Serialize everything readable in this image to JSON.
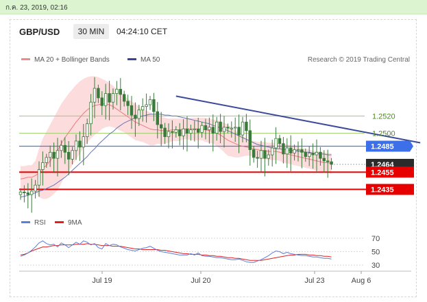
{
  "topbar": {
    "datetime": "ก.ค. 23, 2019, 02:16"
  },
  "header": {
    "pair": "GBP/USD",
    "timeframe": "30 MIN",
    "time": "04:24:10 CET"
  },
  "legend": {
    "ma20": "MA 20 + Bollinger Bands",
    "ma50": "MA 50",
    "credit": "Research © 2019 Trading Central",
    "rsi": "RSI",
    "ma9": "9MA"
  },
  "colors": {
    "ma20": "#f08a8a",
    "ma50": "#37478f",
    "band": "#fbd6d6",
    "candle": "#3a7a3a",
    "support": "#e00000",
    "resistance": "#4b78e6",
    "green_level": "#9ecb6a",
    "rsi": "#5b7fd6",
    "ma9": "#e02020"
  },
  "chart_data": [
    {
      "type": "candlestick",
      "title": "",
      "ylim": [
        1.2418,
        1.2575
      ],
      "x_ticks": [
        "Jul 19",
        "Jul 20",
        "Jul 23",
        "Aug 6"
      ],
      "levels": [
        {
          "value": 1.252,
          "label": "1.2520",
          "style": "green-line"
        },
        {
          "value": 1.25,
          "label": "1.2500",
          "style": "green-line"
        },
        {
          "value": 1.2485,
          "label": "1.2485",
          "style": "blue-line-badge"
        },
        {
          "value": 1.2464,
          "label": "1.2464",
          "style": "current-price-badge"
        },
        {
          "value": 1.2455,
          "label": "1.2455",
          "style": "red-line-badge"
        },
        {
          "value": 1.2435,
          "label": "1.2435",
          "style": "red-line-badge"
        }
      ],
      "close": [
        1.2432,
        1.2431,
        1.2429,
        1.2433,
        1.244,
        1.2458,
        1.2466,
        1.2472,
        1.2478,
        1.2471,
        1.248,
        1.2486,
        1.2478,
        1.247,
        1.248,
        1.2491,
        1.2484,
        1.2496,
        1.2511,
        1.2536,
        1.2552,
        1.2541,
        1.2532,
        1.2546,
        1.2536,
        1.2546,
        1.2551,
        1.2545,
        1.2537,
        1.2532,
        1.2521,
        1.2517,
        1.2527,
        1.2531,
        1.2533,
        1.2539,
        1.2525,
        1.251,
        1.2506,
        1.2496,
        1.2502,
        1.2501,
        1.2504,
        1.2497,
        1.2505,
        1.25,
        1.2504,
        1.2505,
        1.2501,
        1.2509,
        1.2504,
        1.2507,
        1.25,
        1.2513,
        1.2502,
        1.2507,
        1.2506,
        1.2506,
        1.2507,
        1.2498,
        1.2513,
        1.2503,
        1.2481,
        1.2472,
        1.2471,
        1.248,
        1.2471,
        1.2475,
        1.2483,
        1.2494,
        1.2488,
        1.2476,
        1.2483,
        1.2477,
        1.2481,
        1.2481,
        1.2478,
        1.2473,
        1.2477,
        1.2475,
        1.2478,
        1.2471,
        1.2468,
        1.2467,
        1.2464
      ],
      "ma20": [
        1.2447,
        1.2448,
        1.2449,
        1.2449,
        1.2451,
        1.2454,
        1.2459,
        1.2463,
        1.2468,
        1.2474,
        1.248,
        1.2488,
        1.2495,
        1.2501,
        1.2507,
        1.2513,
        1.2518,
        1.2523,
        1.2527,
        1.253,
        1.2532,
        1.2533,
        1.2534,
        1.2534,
        1.2533,
        1.2531,
        1.2528,
        1.2525,
        1.2522,
        1.2519,
        1.2516,
        1.2513,
        1.2511,
        1.2509,
        1.2507,
        1.2505,
        1.2504,
        1.2504,
        1.2503,
        1.2503,
        1.2503,
        1.2504,
        1.2504,
        1.2504,
        1.2505,
        1.2505,
        1.2505,
        1.2505,
        1.2505,
        1.2505,
        1.2504,
        1.2503,
        1.2502,
        1.25,
        1.2498,
        1.2495,
        1.2492,
        1.249,
        1.2488,
        1.2486,
        1.2485,
        1.2484,
        1.2483,
        1.2482,
        1.2481,
        1.248,
        1.248,
        1.2479,
        1.2479,
        1.2479,
        1.2478,
        1.2477,
        1.2476,
        1.2475,
        1.2474,
        1.2473,
        1.2472,
        1.2471,
        1.247,
        1.2469,
        1.2468,
        1.2467,
        1.2466,
        1.2466,
        1.2465
      ],
      "ma50": [
        1.2426,
        1.2427,
        1.2428,
        1.243,
        1.2431,
        1.2433,
        1.2434,
        1.2436,
        1.2438,
        1.244,
        1.2443,
        1.2446,
        1.2449,
        1.2453,
        1.2457,
        1.2461,
        1.2465,
        1.2469,
        1.2473,
        1.2478,
        1.2482,
        1.2487,
        1.2491,
        1.2495,
        1.2499,
        1.2502,
        1.2506,
        1.2509,
        1.2512,
        1.2514,
        1.2516,
        1.2518,
        1.2519,
        1.252,
        1.2521,
        1.2522,
        1.2522,
        1.2522,
        1.2522,
        1.2521,
        1.2521,
        1.252,
        1.252,
        1.2519,
        1.2518,
        1.2517,
        1.2516,
        1.2515,
        1.2514,
        1.2513,
        1.2512,
        1.2511,
        1.2509,
        1.2508,
        1.2506,
        1.2505,
        1.2503,
        1.2501,
        1.2499,
        1.2497,
        1.2495,
        1.2493,
        1.2491,
        1.2489,
        1.2487,
        1.2486,
        1.2485,
        1.2484,
        1.2483,
        1.2482,
        1.2482,
        1.2481,
        1.2481,
        1.248,
        1.248,
        1.2479,
        1.2479,
        1.2478,
        1.2478,
        1.2477,
        1.2477,
        1.2476,
        1.2476,
        1.2475,
        1.2475
      ],
      "band_upper": [
        1.2462,
        1.2462,
        1.2463,
        1.2463,
        1.2468,
        1.2482,
        1.2494,
        1.2502,
        1.251,
        1.2518,
        1.2526,
        1.2534,
        1.254,
        1.2546,
        1.2551,
        1.2556,
        1.256,
        1.2563,
        1.2565,
        1.2566,
        1.2566,
        1.2565,
        1.2563,
        1.2561,
        1.2558,
        1.2555,
        1.2551,
        1.2547,
        1.2543,
        1.254,
        1.2537,
        1.2534,
        1.2531,
        1.2528,
        1.2526,
        1.2524,
        1.2522,
        1.252,
        1.2519,
        1.2518,
        1.2517,
        1.2517,
        1.2517,
        1.2517,
        1.2517,
        1.2517,
        1.2518,
        1.2518,
        1.2518,
        1.2518,
        1.2518,
        1.2517,
        1.2516,
        1.2515,
        1.2514,
        1.2512,
        1.251,
        1.2507,
        1.2504,
        1.25,
        1.2497,
        1.2494,
        1.2492,
        1.2491,
        1.249,
        1.249,
        1.249,
        1.2489,
        1.2489,
        1.2489,
        1.2488,
        1.2488,
        1.2487,
        1.2486,
        1.2485,
        1.2484,
        1.2483,
        1.2482,
        1.2481,
        1.248,
        1.2479,
        1.2479,
        1.2478,
        1.2477,
        1.2477
      ],
      "band_lower": [
        1.2432,
        1.2434,
        1.2435,
        1.2435,
        1.2434,
        1.2426,
        1.2424,
        1.2424,
        1.2426,
        1.243,
        1.2434,
        1.2442,
        1.245,
        1.2456,
        1.2463,
        1.247,
        1.2476,
        1.2483,
        1.2489,
        1.2494,
        1.2498,
        1.2501,
        1.2505,
        1.2507,
        1.2508,
        1.2507,
        1.2505,
        1.2503,
        1.2501,
        1.2498,
        1.2495,
        1.2492,
        1.2491,
        1.249,
        1.2488,
        1.2486,
        1.2486,
        1.2488,
        1.2487,
        1.2488,
        1.2489,
        1.2491,
        1.2491,
        1.2491,
        1.2493,
        1.2493,
        1.2492,
        1.2492,
        1.2492,
        1.2492,
        1.249,
        1.2489,
        1.2488,
        1.2485,
        1.2482,
        1.2478,
        1.2474,
        1.2473,
        1.2472,
        1.2472,
        1.2473,
        1.2474,
        1.2474,
        1.2473,
        1.2472,
        1.247,
        1.247,
        1.2469,
        1.2469,
        1.2469,
        1.2468,
        1.2466,
        1.2465,
        1.2464,
        1.2463,
        1.2462,
        1.2461,
        1.246,
        1.2459,
        1.2458,
        1.2457,
        1.2455,
        1.2454,
        1.2455,
        1.2453
      ],
      "trendline": [
        [
          42,
          1.2543
        ],
        [
          108,
          1.2489
        ]
      ],
      "forecast_arrow": [
        [
          110,
          1.2464
        ],
        [
          118,
          1.2442
        ]
      ]
    },
    {
      "type": "line",
      "title": "",
      "ylim": [
        25,
        80
      ],
      "y_ticks": [
        70,
        50,
        30
      ],
      "rsi": [
        43,
        45,
        48,
        52,
        57,
        63,
        66,
        62,
        60,
        61,
        57,
        63,
        60,
        56,
        60,
        64,
        61,
        66,
        64,
        60,
        62,
        56,
        54,
        62,
        59,
        61,
        60,
        57,
        55,
        53,
        52,
        51,
        53,
        55,
        56,
        58,
        55,
        52,
        50,
        49,
        48,
        47,
        46,
        45,
        45,
        45,
        47,
        45,
        48,
        44,
        43,
        43,
        42,
        41,
        41,
        40,
        39,
        38,
        38,
        39,
        37,
        35,
        34,
        34,
        36,
        38,
        41,
        44,
        48,
        51,
        50,
        47,
        49,
        47,
        46,
        45,
        44,
        44,
        43,
        42,
        42,
        41,
        40,
        40,
        39
      ],
      "ma9": [
        45,
        46,
        48,
        51,
        53,
        55,
        57,
        57,
        58,
        59,
        59,
        60,
        60,
        60,
        60,
        61,
        61,
        61,
        62,
        61,
        61,
        60,
        59,
        59,
        59,
        58,
        58,
        58,
        57,
        56,
        55,
        54,
        54,
        53,
        53,
        53,
        53,
        53,
        52,
        52,
        51,
        50,
        49,
        48,
        47,
        47,
        46,
        46,
        46,
        45,
        45,
        44,
        44,
        43,
        43,
        42,
        41,
        41,
        40,
        40,
        39,
        38,
        37,
        37,
        37,
        37,
        38,
        39,
        40,
        41,
        42,
        43,
        44,
        45,
        45,
        46,
        46,
        46,
        45,
        45,
        44,
        44,
        43,
        43,
        42
      ]
    }
  ]
}
